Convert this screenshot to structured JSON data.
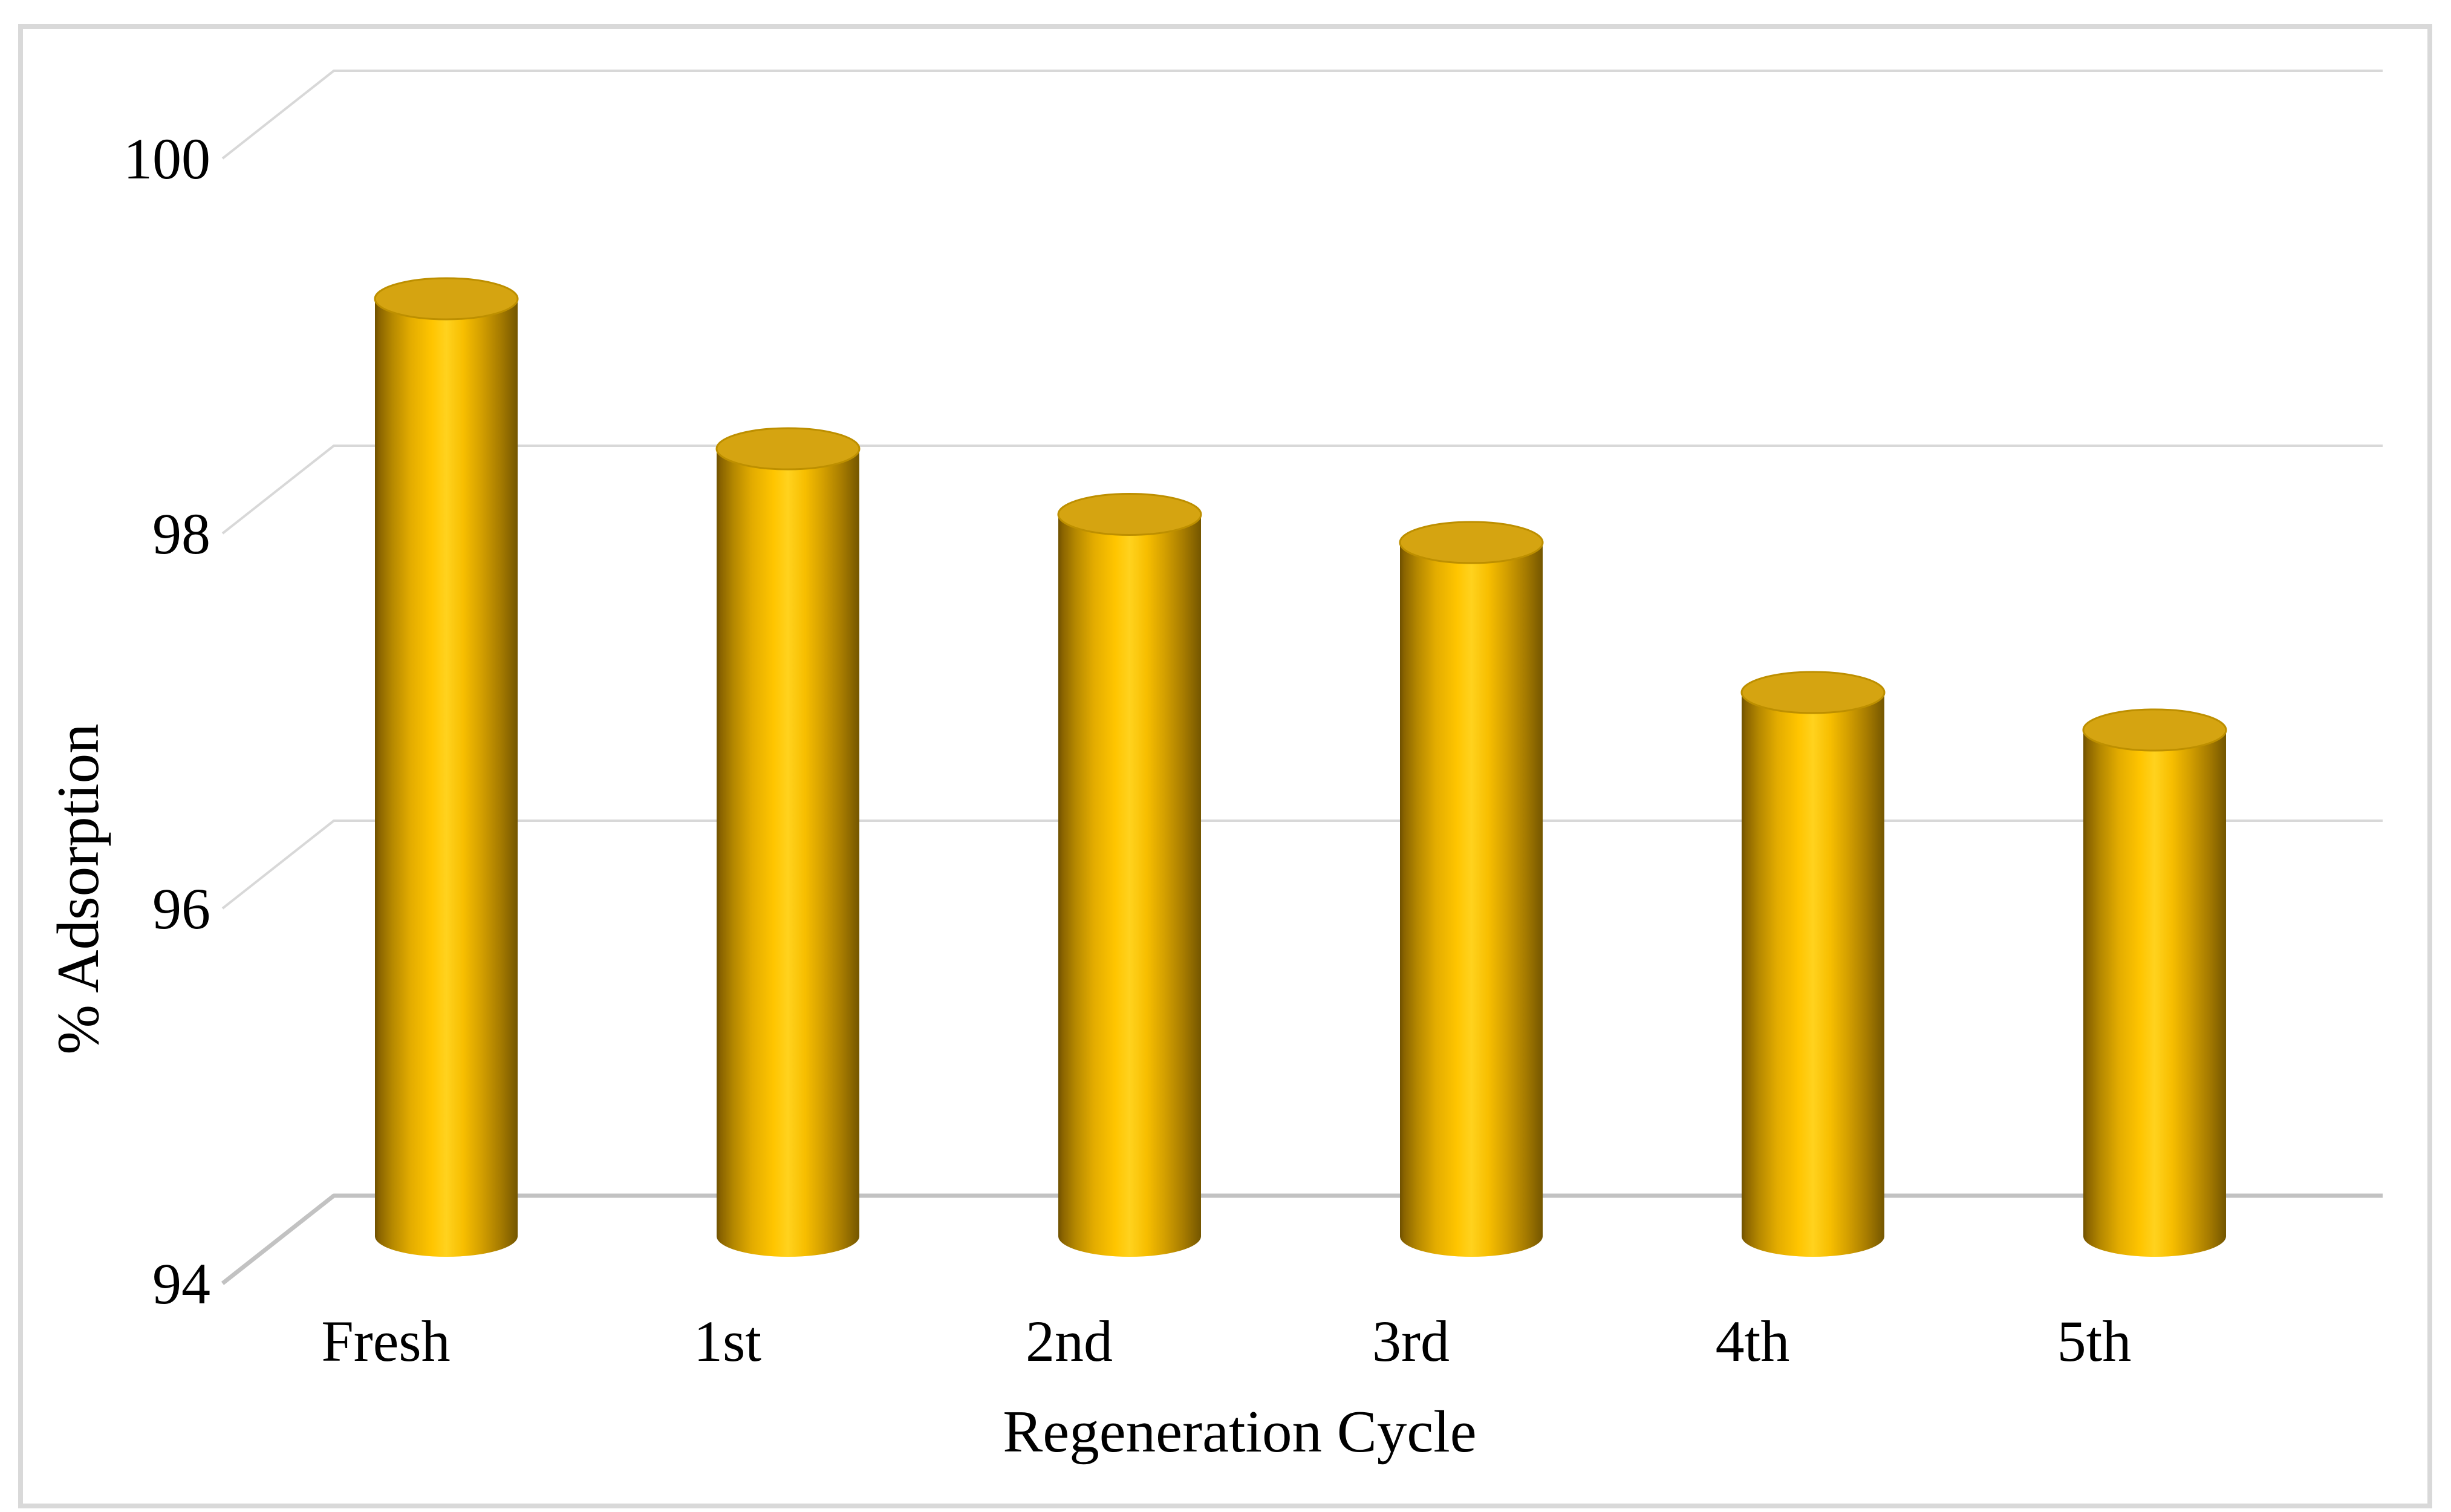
{
  "chart_data": {
    "type": "bar",
    "subtype": "3d-cylinder",
    "title": "",
    "xlabel": "Regeneration Cycle",
    "ylabel": "% Adsorption",
    "categories": [
      "Fresh",
      "1st",
      "2nd",
      "3rd",
      "4th",
      "5th"
    ],
    "values": [
      99.0,
      98.2,
      97.85,
      97.7,
      96.9,
      96.7
    ],
    "ylim": [
      94,
      100
    ],
    "yticks": [
      100,
      98,
      96,
      94
    ],
    "grid": true,
    "legend": false,
    "colors": {
      "background": "#FFFFFF",
      "border": "#D9D9D9",
      "gridline": "#D8D8D8",
      "baseline": "#C2C2C2",
      "text": "#000000",
      "bar_top": "#D5A411",
      "bar_top_rim": "#BD8F00",
      "bar_gradient_stops": [
        [
          "0%",
          "#6E5000"
        ],
        [
          "3%",
          "#8A6400"
        ],
        [
          "12%",
          "#B58800"
        ],
        [
          "25%",
          "#E3AC00"
        ],
        [
          "40%",
          "#FFC500"
        ],
        [
          "50%",
          "#FFD21E"
        ],
        [
          "62%",
          "#F7BE00"
        ],
        [
          "75%",
          "#D29E00"
        ],
        [
          "88%",
          "#A67B00"
        ],
        [
          "100%",
          "#745600"
        ]
      ]
    }
  }
}
